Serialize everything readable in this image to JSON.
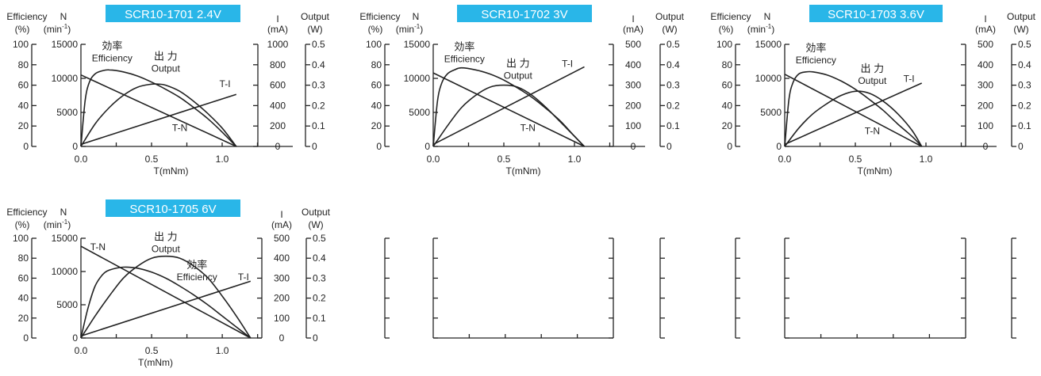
{
  "accent_color": "#29b6e8",
  "chart_data": [
    {
      "type": "line",
      "title": "SCR10-1701  2.4V",
      "xlabel": "T(mNm)",
      "axes": {
        "efficiency": {
          "label": "Efficiency",
          "unit": "(%)",
          "ticks": [
            "0",
            "20",
            "40",
            "60",
            "80",
            "100"
          ],
          "range": [
            0,
            100
          ]
        },
        "speed": {
          "label": "N",
          "unit": "(min",
          "unit_sup": "-1",
          "unit_end": ")",
          "ticks": [
            "0",
            "5000",
            "10000",
            "15000"
          ],
          "range": [
            0,
            15000
          ]
        },
        "current": {
          "label": "I",
          "unit": "(mA)",
          "ticks": [
            "0",
            "200",
            "400",
            "600",
            "800",
            "1000"
          ],
          "range": [
            0,
            1000
          ]
        },
        "output": {
          "label": "Output",
          "unit": "(W)",
          "ticks": [
            "0",
            "0.1",
            "0.2",
            "0.3",
            "0.4",
            "0.5"
          ],
          "range": [
            0,
            0.5
          ]
        },
        "x_ticks": [
          "0.0",
          "0.5",
          "1.0"
        ],
        "xlim": [
          0,
          1.5
        ]
      },
      "stall_torque": 1.1,
      "series": [
        {
          "name": "T-N",
          "axis": "speed",
          "x": [
            0,
            1.1
          ],
          "y": [
            10500,
            0
          ]
        },
        {
          "name": "T-I",
          "axis": "current",
          "x": [
            0,
            1.1
          ],
          "y": [
            20,
            510
          ]
        },
        {
          "name": "出 力",
          "name_en": "Output",
          "axis": "output",
          "x": [
            0,
            0.1,
            0.2,
            0.3,
            0.4,
            0.5,
            0.55,
            0.6,
            0.7,
            0.8,
            0.9,
            1.0,
            1.1
          ],
          "y": [
            0,
            0.11,
            0.19,
            0.25,
            0.29,
            0.305,
            0.305,
            0.3,
            0.27,
            0.22,
            0.16,
            0.09,
            0
          ]
        },
        {
          "name": "効率",
          "name_en": "Efficiency",
          "axis": "efficiency",
          "x": [
            0,
            0.03,
            0.06,
            0.1,
            0.15,
            0.2,
            0.3,
            0.4,
            0.5,
            0.6,
            0.7,
            0.8,
            0.9,
            1.0,
            1.1
          ],
          "y": [
            0,
            45,
            63,
            71,
            74,
            75,
            73,
            69,
            63,
            56,
            48,
            38,
            27,
            14,
            0
          ]
        }
      ],
      "labels": {
        "eff_ja": "効率",
        "eff_en": "Efficiency",
        "out_ja": "出 力",
        "out_en": "Output",
        "ti": "T-I",
        "tn": "T-N"
      },
      "label_at": {
        "eff": [
          0.12,
          95
        ],
        "out": [
          0.6,
          85
        ],
        "ti": [
          1.02,
          58
        ],
        "tn": [
          0.7,
          15
        ]
      }
    },
    {
      "type": "line",
      "title": "SCR10-1702  3V",
      "xlabel": "T(mNm)",
      "axes": {
        "efficiency": {
          "label": "Efficiency",
          "unit": "(%)",
          "ticks": [
            "0",
            "20",
            "40",
            "60",
            "80",
            "100"
          ],
          "range": [
            0,
            100
          ]
        },
        "speed": {
          "label": "N",
          "unit": "(min",
          "unit_sup": "-1",
          "unit_end": ")",
          "ticks": [
            "0",
            "5000",
            "10000",
            "15000"
          ],
          "range": [
            0,
            15000
          ]
        },
        "current": {
          "label": "I",
          "unit": "(mA)",
          "ticks": [
            "0",
            "100",
            "200",
            "300",
            "400",
            "500"
          ],
          "range": [
            0,
            500
          ]
        },
        "output": {
          "label": "Output",
          "unit": "(W)",
          "ticks": [
            "0",
            "0.1",
            "0.2",
            "0.3",
            "0.4",
            "0.5"
          ],
          "range": [
            0,
            0.5
          ]
        },
        "x_ticks": [
          "0.0",
          "0.5",
          "1.0"
        ],
        "xlim": [
          0,
          1.5
        ]
      },
      "stall_torque": 1.07,
      "series": [
        {
          "name": "T-N",
          "axis": "speed",
          "x": [
            0,
            1.07
          ],
          "y": [
            10800,
            0
          ]
        },
        {
          "name": "T-I",
          "axis": "current",
          "x": [
            0,
            1.07
          ],
          "y": [
            10,
            390
          ]
        },
        {
          "name": "出 力",
          "name_en": "Output",
          "axis": "output",
          "x": [
            0,
            0.1,
            0.2,
            0.3,
            0.4,
            0.5,
            0.6,
            0.7,
            0.8,
            0.9,
            1.0,
            1.07
          ],
          "y": [
            0,
            0.1,
            0.19,
            0.25,
            0.29,
            0.3,
            0.29,
            0.25,
            0.19,
            0.12,
            0.05,
            0
          ]
        },
        {
          "name": "効率",
          "name_en": "Efficiency",
          "axis": "efficiency",
          "x": [
            0,
            0.03,
            0.06,
            0.1,
            0.15,
            0.2,
            0.3,
            0.4,
            0.5,
            0.6,
            0.7,
            0.8,
            0.9,
            1.0,
            1.07
          ],
          "y": [
            0,
            44,
            62,
            71,
            75,
            77,
            75,
            71,
            65,
            57,
            48,
            37,
            25,
            10,
            0
          ]
        }
      ],
      "labels": {
        "eff_ja": "効率",
        "eff_en": "Efficiency",
        "out_ja": "出 力",
        "out_en": "Output",
        "ti": "T-I",
        "tn": "T-N"
      },
      "label_at": {
        "eff": [
          0.12,
          94
        ],
        "out": [
          0.6,
          78
        ],
        "ti": [
          0.95,
          78
        ],
        "tn": [
          0.67,
          15
        ]
      }
    },
    {
      "type": "line",
      "title": "SCR10-1703  3.6V",
      "xlabel": "T(mNm)",
      "axes": {
        "efficiency": {
          "label": "Efficiency",
          "unit": "(%)",
          "ticks": [
            "0",
            "20",
            "40",
            "60",
            "80",
            "100"
          ],
          "range": [
            0,
            100
          ]
        },
        "speed": {
          "label": "N",
          "unit": "(min",
          "unit_sup": "-1",
          "unit_end": ")",
          "ticks": [
            "0",
            "5000",
            "10000",
            "15000"
          ],
          "range": [
            0,
            15000
          ]
        },
        "current": {
          "label": "I",
          "unit": "(mA)",
          "ticks": [
            "0",
            "100",
            "200",
            "300",
            "400",
            "500"
          ],
          "range": [
            0,
            500
          ]
        },
        "output": {
          "label": "Output",
          "unit": "(W)",
          "ticks": [
            "0",
            "0.1",
            "0.2",
            "0.3",
            "0.4",
            "0.5"
          ],
          "range": [
            0,
            0.5
          ]
        },
        "x_ticks": [
          "0.0",
          "0.5",
          "1.0"
        ],
        "xlim": [
          0,
          1.5
        ]
      },
      "stall_torque": 0.97,
      "series": [
        {
          "name": "T-N",
          "axis": "speed",
          "x": [
            0,
            0.97
          ],
          "y": [
            10600,
            0
          ]
        },
        {
          "name": "T-I",
          "axis": "current",
          "x": [
            0,
            0.97
          ],
          "y": [
            10,
            310
          ]
        },
        {
          "name": "出 力",
          "name_en": "Output",
          "axis": "output",
          "x": [
            0,
            0.1,
            0.2,
            0.3,
            0.4,
            0.5,
            0.6,
            0.7,
            0.8,
            0.9,
            0.97
          ],
          "y": [
            0,
            0.09,
            0.16,
            0.21,
            0.25,
            0.27,
            0.26,
            0.22,
            0.16,
            0.08,
            0
          ]
        },
        {
          "name": "効率",
          "name_en": "Efficiency",
          "axis": "efficiency",
          "x": [
            0,
            0.03,
            0.06,
            0.1,
            0.15,
            0.2,
            0.3,
            0.4,
            0.5,
            0.6,
            0.7,
            0.8,
            0.9,
            0.97
          ],
          "y": [
            0,
            46,
            63,
            71,
            73,
            73,
            70,
            64,
            56,
            46,
            35,
            22,
            10,
            0
          ]
        }
      ],
      "labels": {
        "eff_ja": "効率",
        "eff_en": "Efficiency",
        "out_ja": "出 力",
        "out_en": "Output",
        "ti": "T-I",
        "tn": "T-N"
      },
      "label_at": {
        "eff": [
          0.12,
          93
        ],
        "out": [
          0.62,
          73
        ],
        "ti": [
          0.88,
          63
        ],
        "tn": [
          0.62,
          12
        ]
      }
    },
    {
      "type": "line",
      "title": "SCR10-1705  6V",
      "xlabel": "T(mNm)",
      "axes": {
        "efficiency": {
          "label": "Efficiency",
          "unit": "(%)",
          "ticks": [
            "0",
            "20",
            "40",
            "60",
            "80",
            "100"
          ],
          "range": [
            0,
            100
          ]
        },
        "speed": {
          "label": "N",
          "unit": "(min",
          "unit_sup": "-1",
          "unit_end": ")",
          "ticks": [
            "0",
            "5000",
            "10000",
            "15000"
          ],
          "range": [
            0,
            15000
          ]
        },
        "current": {
          "label": "I",
          "unit": "(mA)",
          "ticks": [
            "0",
            "100",
            "200",
            "300",
            "400",
            "500"
          ],
          "range": [
            0,
            500
          ]
        },
        "output": {
          "label": "Output",
          "unit": "(W)",
          "ticks": [
            "0",
            "0.1",
            "0.2",
            "0.3",
            "0.4",
            "0.5"
          ],
          "range": [
            0,
            0.5
          ]
        },
        "x_ticks": [
          "0.0",
          "0.5",
          "1.0"
        ],
        "xlim": [
          0,
          1.28
        ]
      },
      "stall_torque": 1.2,
      "series": [
        {
          "name": "T-N",
          "axis": "speed",
          "x": [
            0,
            1.2
          ],
          "y": [
            13800,
            0
          ]
        },
        {
          "name": "T-I",
          "axis": "current",
          "x": [
            0,
            1.2
          ],
          "y": [
            10,
            285
          ]
        },
        {
          "name": "出 力",
          "name_en": "Output",
          "axis": "output",
          "x": [
            0,
            0.1,
            0.2,
            0.3,
            0.4,
            0.5,
            0.6,
            0.7,
            0.8,
            0.9,
            1.0,
            1.1,
            1.2
          ],
          "y": [
            0,
            0.11,
            0.21,
            0.3,
            0.36,
            0.4,
            0.41,
            0.4,
            0.36,
            0.3,
            0.21,
            0.11,
            0
          ]
        },
        {
          "name": "効率",
          "name_en": "Efficiency",
          "axis": "efficiency",
          "x": [
            0,
            0.05,
            0.1,
            0.15,
            0.2,
            0.3,
            0.4,
            0.5,
            0.6,
            0.7,
            0.8,
            0.9,
            1.0,
            1.1,
            1.2
          ],
          "y": [
            0,
            30,
            52,
            63,
            68,
            71,
            70,
            66,
            60,
            52,
            43,
            33,
            22,
            11,
            0
          ]
        }
      ],
      "labels": {
        "eff_ja": "効率",
        "eff_en": "Efficiency",
        "out_ja": "出 力",
        "out_en": "Output",
        "ti": "T-I",
        "tn": "T-N"
      },
      "label_at": {
        "eff": [
          0.72,
          70
        ],
        "out": [
          0.6,
          98
        ],
        "ti": [
          1.15,
          58
        ],
        "tn": [
          0.12,
          88
        ]
      }
    }
  ],
  "empty_panels": [
    {
      "ticks": 6,
      "x_ticks": 4
    },
    {
      "ticks": 6,
      "x_ticks": 4
    }
  ]
}
